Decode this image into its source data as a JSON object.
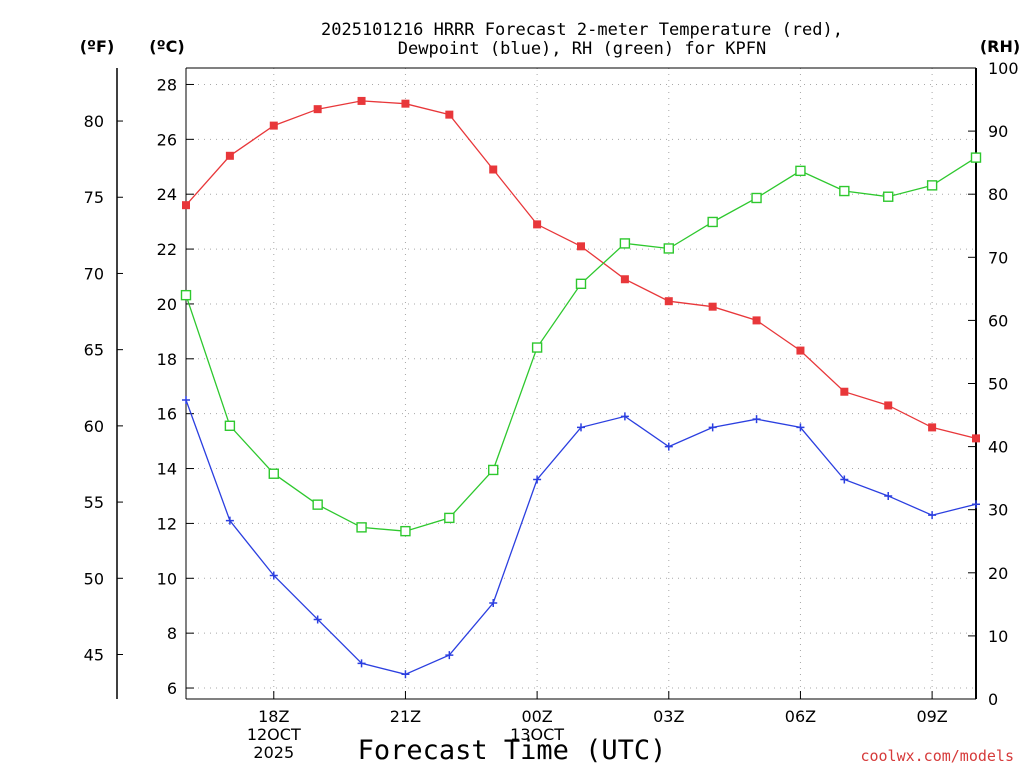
{
  "chart_data": {
    "type": "line",
    "title_lines": [
      "2025101216 HRRR Forecast 2-meter Temperature (red),",
      "Dewpoint (blue), RH (green) for KPFN"
    ],
    "xlabel": "Forecast Time (UTC)",
    "credit": "coolwx.com/models",
    "unit_labels": {
      "fahrenheit": "(ºF)",
      "celsius": "(ºC)",
      "rh": "(RH)"
    },
    "x_range_hours": [
      0,
      18
    ],
    "x_ticks": [
      {
        "hour": 2,
        "lines": [
          "18Z",
          "12OCT",
          "2025"
        ]
      },
      {
        "hour": 5,
        "lines": [
          "21Z"
        ]
      },
      {
        "hour": 8,
        "lines": [
          "00Z",
          "13OCT"
        ]
      },
      {
        "hour": 11,
        "lines": [
          "03Z"
        ]
      },
      {
        "hour": 14,
        "lines": [
          "06Z"
        ]
      },
      {
        "hour": 17,
        "lines": [
          "09Z"
        ]
      }
    ],
    "celsius_axis": {
      "range": [
        5.6,
        28.6
      ],
      "ticks": [
        6,
        8,
        10,
        12,
        14,
        16,
        18,
        20,
        22,
        24,
        26,
        28
      ]
    },
    "fahrenheit_axis": {
      "ticks": [
        45,
        50,
        55,
        60,
        65,
        70,
        75,
        80
      ]
    },
    "rh_axis": {
      "range": [
        0,
        100
      ],
      "ticks": [
        0,
        10,
        20,
        30,
        40,
        50,
        60,
        70,
        80,
        90,
        100
      ]
    },
    "series": [
      {
        "name": "2-meter Temperature",
        "axis": "celsius",
        "color": "#e8373a",
        "marker": "filled-square",
        "values": [
          23.6,
          25.4,
          26.5,
          27.1,
          27.4,
          27.3,
          26.9,
          24.9,
          22.9,
          22.1,
          20.9,
          20.1,
          19.9,
          19.4,
          18.3,
          16.8,
          16.3,
          15.5,
          15.1
        ]
      },
      {
        "name": "Dewpoint",
        "axis": "celsius",
        "color": "#2b3fe0",
        "marker": "plus",
        "values": [
          16.5,
          12.1,
          10.1,
          8.5,
          6.9,
          6.5,
          7.2,
          9.1,
          13.6,
          15.5,
          15.9,
          14.8,
          15.5,
          15.8,
          15.5,
          13.6,
          13.0,
          12.3,
          12.7
        ]
      },
      {
        "name": "RH",
        "axis": "rh",
        "color": "#2ec82e",
        "marker": "open-square",
        "values": [
          64,
          43.3,
          35.7,
          30.8,
          27.2,
          26.6,
          28.7,
          36.3,
          55.7,
          65.8,
          72.2,
          71.4,
          75.6,
          79.4,
          83.7,
          80.5,
          79.6,
          81.4,
          85.8
        ]
      }
    ]
  }
}
